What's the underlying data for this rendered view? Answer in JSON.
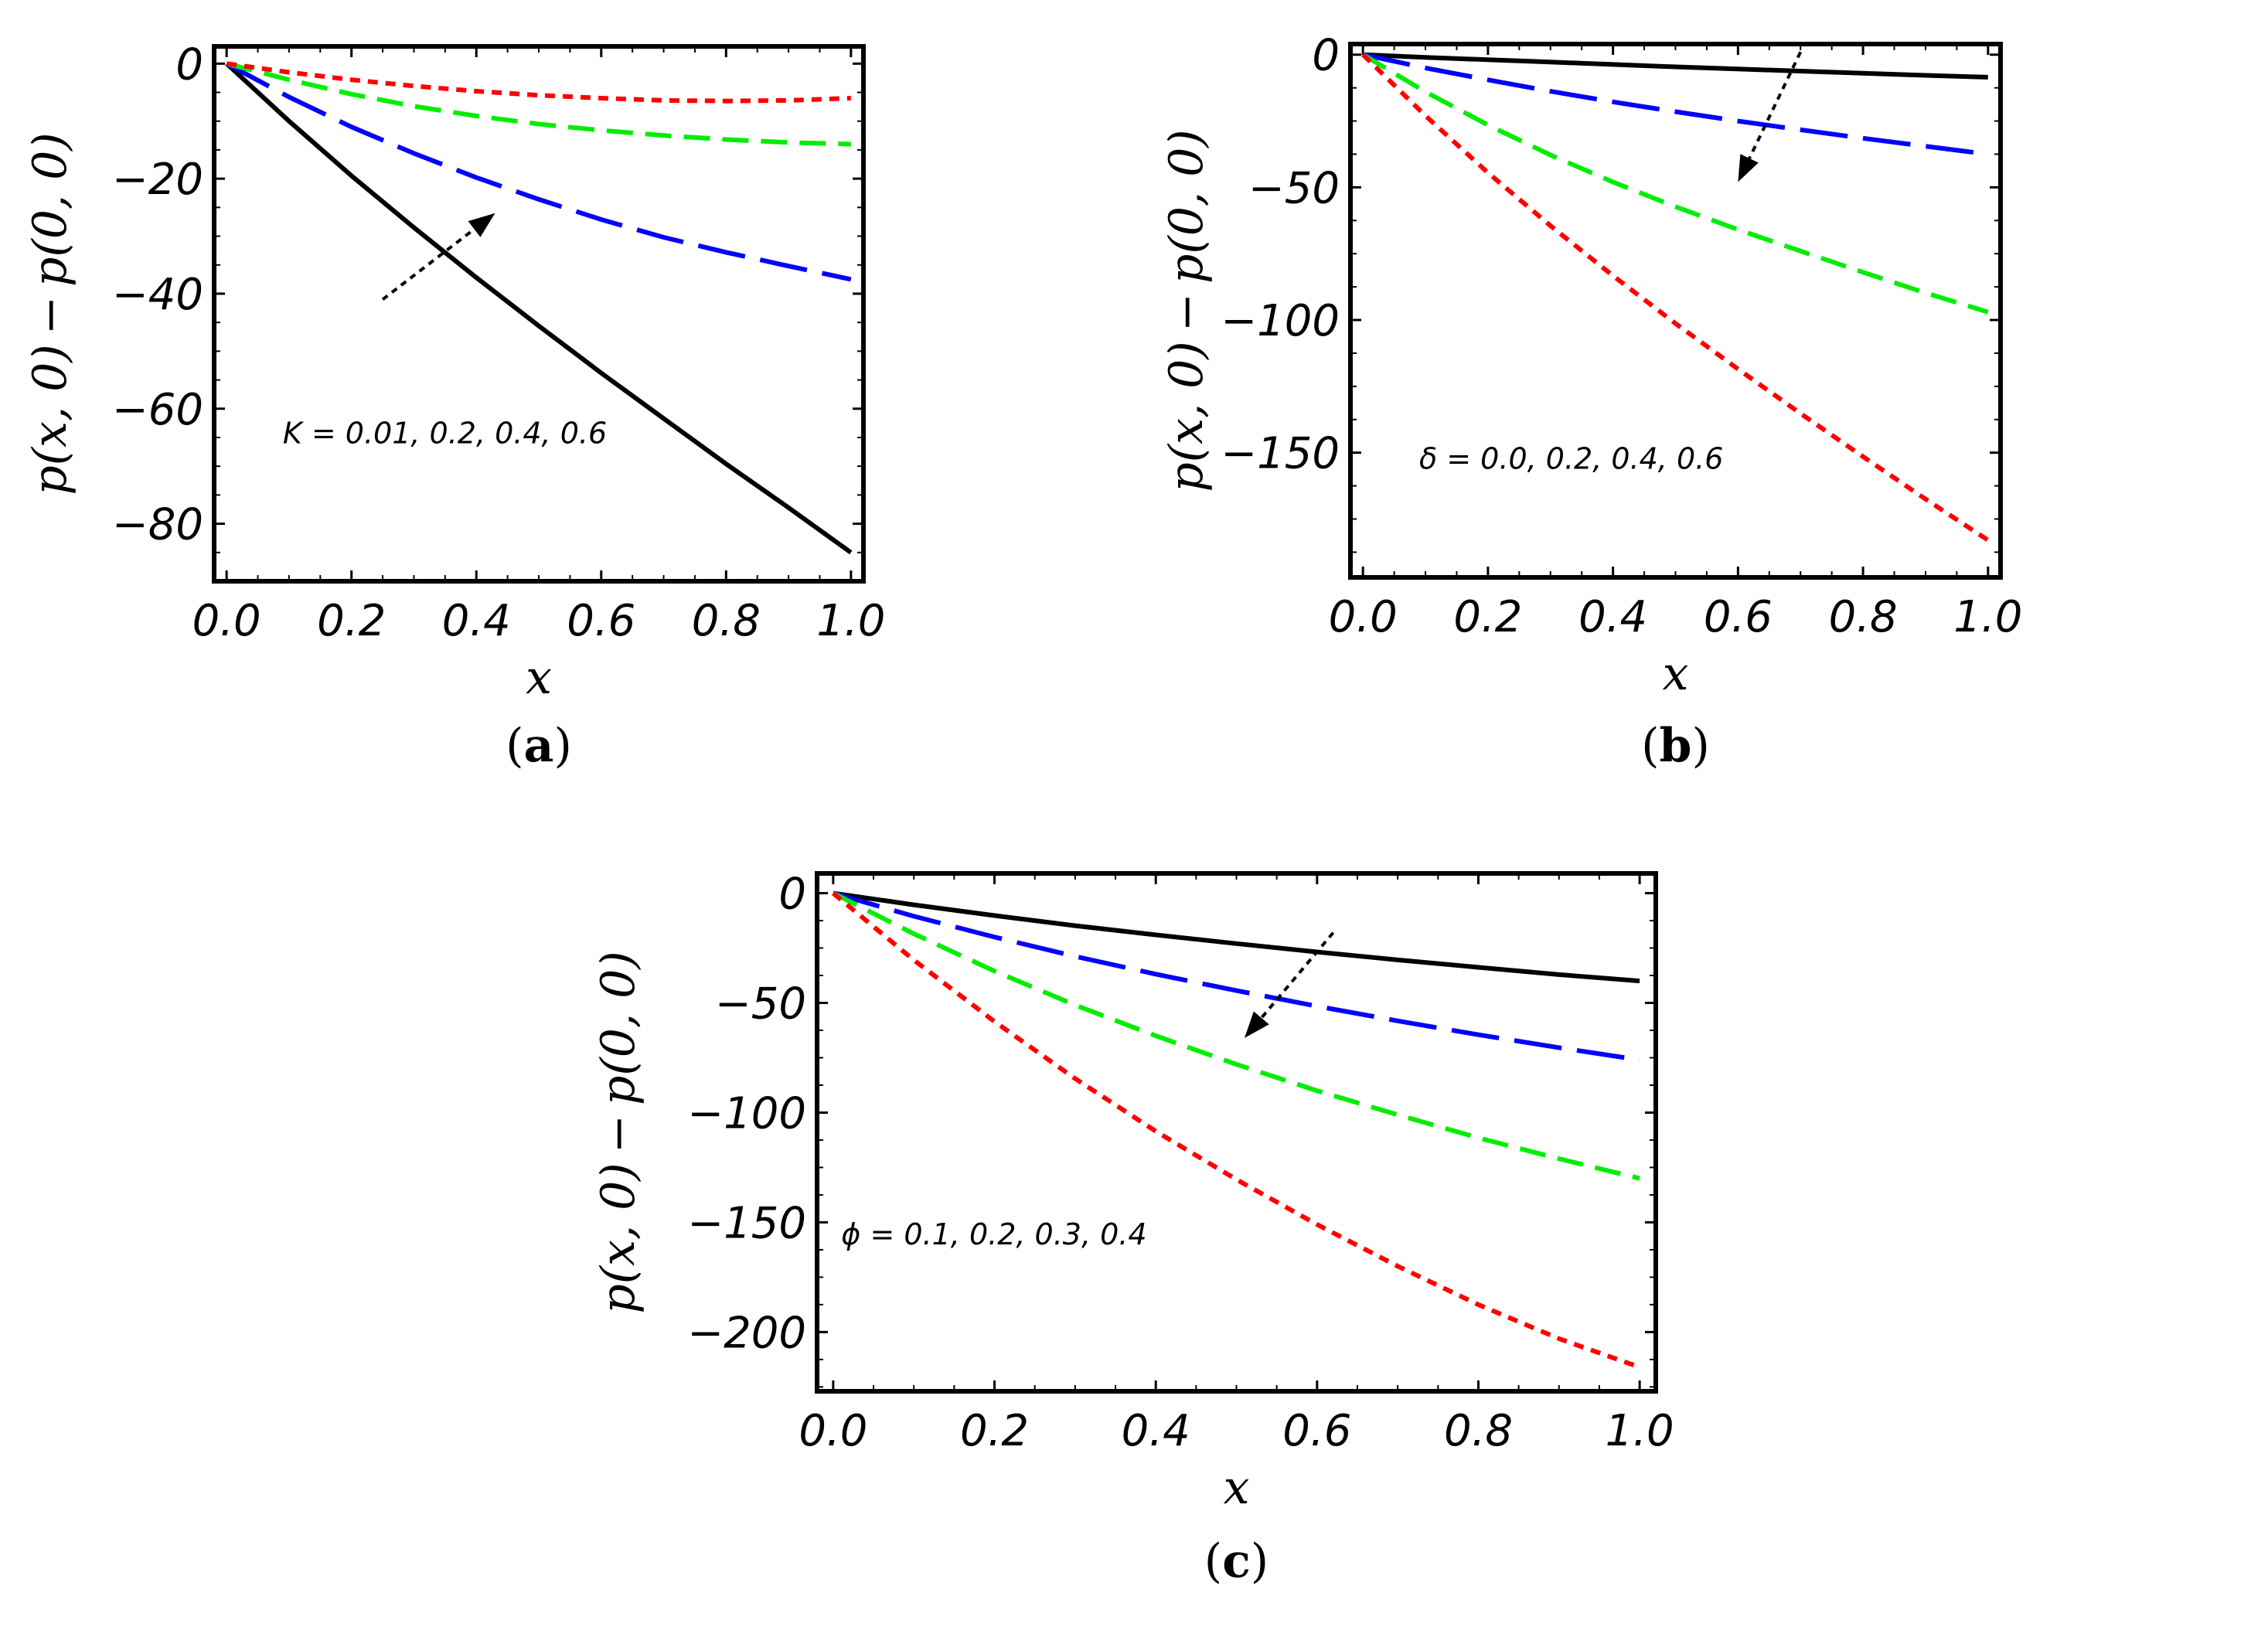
{
  "chart_data": [
    {
      "type": "line",
      "panel": "(a)",
      "panel_letter": "a",
      "xlabel": "x",
      "ylabel": "p(x, 0) − p(0, 0)",
      "xlim": [
        -0.02,
        1.02
      ],
      "ylim": [
        -90,
        3
      ],
      "xticks": [
        0.0,
        0.2,
        0.4,
        0.6,
        0.8,
        1.0
      ],
      "xtick_labels": [
        "0.0",
        "0.2",
        "0.4",
        "0.6",
        "0.8",
        "1.0"
      ],
      "yticks": [
        0,
        -20,
        -40,
        -60,
        -80
      ],
      "ytick_labels": [
        "0",
        "−20",
        "−40",
        "−60",
        "−80"
      ],
      "annotation": "K = 0.01, 0.2, 0.4, 0.6",
      "arrow_direction": "up-right",
      "arrow_from": [
        0.25,
        -41
      ],
      "arrow_to": [
        0.43,
        -26
      ],
      "annotation_at": [
        0.09,
        -66
      ],
      "x": [
        0.0,
        0.1,
        0.2,
        0.3,
        0.4,
        0.5,
        0.6,
        0.7,
        0.8,
        0.9,
        1.0
      ],
      "series": [
        {
          "name": "K = 0.01",
          "color": "#000000",
          "dash": "solid",
          "values": [
            0,
            -10.0,
            -19.5,
            -28.5,
            -37.2,
            -45.6,
            -53.8,
            -61.7,
            -69.6,
            -77.2,
            -85
          ]
        },
        {
          "name": "K = 0.2",
          "color": "#0000ff",
          "dash": "longdash",
          "values": [
            0,
            -5.8,
            -11.0,
            -15.6,
            -19.8,
            -23.6,
            -27.1,
            -30.2,
            -32.8,
            -35.2,
            -37.5
          ]
        },
        {
          "name": "K = 0.4",
          "color": "#00ee00",
          "dash": "dash",
          "values": [
            0,
            -2.8,
            -5.3,
            -7.4,
            -9.1,
            -10.5,
            -11.6,
            -12.5,
            -13.2,
            -13.7,
            -14.0
          ]
        },
        {
          "name": "K = 0.6",
          "color": "#ff0000",
          "dash": "shortdash",
          "values": [
            0,
            -1.5,
            -2.8,
            -3.9,
            -4.8,
            -5.5,
            -6.0,
            -6.4,
            -6.5,
            -6.4,
            -6.0
          ]
        }
      ]
    },
    {
      "type": "line",
      "panel": "(b)",
      "panel_letter": "b",
      "xlabel": "x",
      "ylabel": "p(x, 0) − p(0, 0)",
      "xlim": [
        -0.02,
        1.02
      ],
      "ylim": [
        -197,
        4
      ],
      "xticks": [
        0.0,
        0.2,
        0.4,
        0.6,
        0.8,
        1.0
      ],
      "xtick_labels": [
        "0.0",
        "0.2",
        "0.4",
        "0.6",
        "0.8",
        "1.0"
      ],
      "yticks": [
        0,
        -50,
        -100,
        -150
      ],
      "ytick_labels": [
        "0",
        "−50",
        "−100",
        "−150"
      ],
      "annotation": "δ = 0.0, 0.2, 0.4, 0.6",
      "arrow_direction": "down-left",
      "arrow_from": [
        0.7,
        1
      ],
      "arrow_to": [
        0.6,
        -48
      ],
      "annotation_at": [
        0.09,
        -156
      ],
      "x": [
        0.0,
        0.1,
        0.2,
        0.3,
        0.4,
        0.5,
        0.6,
        0.7,
        0.8,
        0.9,
        1.0
      ],
      "series": [
        {
          "name": "δ = 0.0",
          "color": "#000000",
          "dash": "solid",
          "values": [
            0,
            -1.0,
            -1.9,
            -2.8,
            -3.7,
            -4.6,
            -5.4,
            -6.2,
            -7.0,
            -7.8,
            -8.5
          ]
        },
        {
          "name": "δ = 0.2",
          "color": "#0000ff",
          "dash": "longdash",
          "values": [
            0,
            -5.0,
            -9.5,
            -13.8,
            -17.8,
            -21.5,
            -25.0,
            -28.3,
            -31.5,
            -34.5,
            -37.5
          ]
        },
        {
          "name": "δ = 0.4",
          "color": "#00ee00",
          "dash": "dash",
          "values": [
            0,
            -14.0,
            -26.5,
            -37.8,
            -48.0,
            -57.3,
            -65.9,
            -74.0,
            -82.0,
            -89.8,
            -97.0
          ]
        },
        {
          "name": "δ = 0.6",
          "color": "#ff0000",
          "dash": "shortdash",
          "values": [
            0,
            -23.0,
            -44.5,
            -64.5,
            -83.3,
            -101.3,
            -118.5,
            -135.2,
            -151.5,
            -167.5,
            -183.0
          ]
        }
      ]
    },
    {
      "type": "line",
      "panel": "(c)",
      "panel_letter": "c",
      "xlabel": "x",
      "ylabel": "p(x, 0) − p(0, 0)",
      "xlim": [
        -0.02,
        1.02
      ],
      "ylim": [
        -227,
        9
      ],
      "xticks": [
        0.0,
        0.2,
        0.4,
        0.6,
        0.8,
        1.0
      ],
      "xtick_labels": [
        "0.0",
        "0.2",
        "0.4",
        "0.6",
        "0.8",
        "1.0"
      ],
      "yticks": [
        0,
        -50,
        -100,
        -150,
        -200
      ],
      "ytick_labels": [
        "0",
        "−50",
        "−100",
        "−150",
        "−200"
      ],
      "annotation": "ϕ = 0.1, 0.2, 0.3, 0.4",
      "arrow_direction": "down-left",
      "arrow_from": [
        0.62,
        -18
      ],
      "arrow_to": [
        0.51,
        -66
      ],
      "annotation_at": [
        0.01,
        -160
      ],
      "x": [
        0.0,
        0.1,
        0.2,
        0.3,
        0.4,
        0.5,
        0.6,
        0.7,
        0.8,
        0.9,
        1.0
      ],
      "series": [
        {
          "name": "ϕ = 0.1",
          "color": "#000000",
          "dash": "solid",
          "values": [
            0,
            -5.3,
            -10.2,
            -14.8,
            -19.0,
            -23.0,
            -26.8,
            -30.4,
            -33.8,
            -37.1,
            -40.0
          ]
        },
        {
          "name": "ϕ = 0.2",
          "color": "#0000ff",
          "dash": "longdash",
          "values": [
            0,
            -10.5,
            -20.0,
            -28.8,
            -36.9,
            -44.4,
            -51.5,
            -58.2,
            -64.5,
            -70.4,
            -76.0
          ]
        },
        {
          "name": "ϕ = 0.3",
          "color": "#00ee00",
          "dash": "dash",
          "values": [
            0,
            -18.5,
            -35.5,
            -51.0,
            -65.0,
            -78.0,
            -90.0,
            -101.0,
            -111.5,
            -121.0,
            -130.0
          ]
        },
        {
          "name": "ϕ = 0.4",
          "color": "#ff0000",
          "dash": "shortdash",
          "values": [
            0,
            -30.5,
            -58.5,
            -84.5,
            -108.5,
            -130.5,
            -151.0,
            -170.0,
            -187.5,
            -203.0,
            -216.0
          ]
        }
      ]
    }
  ]
}
